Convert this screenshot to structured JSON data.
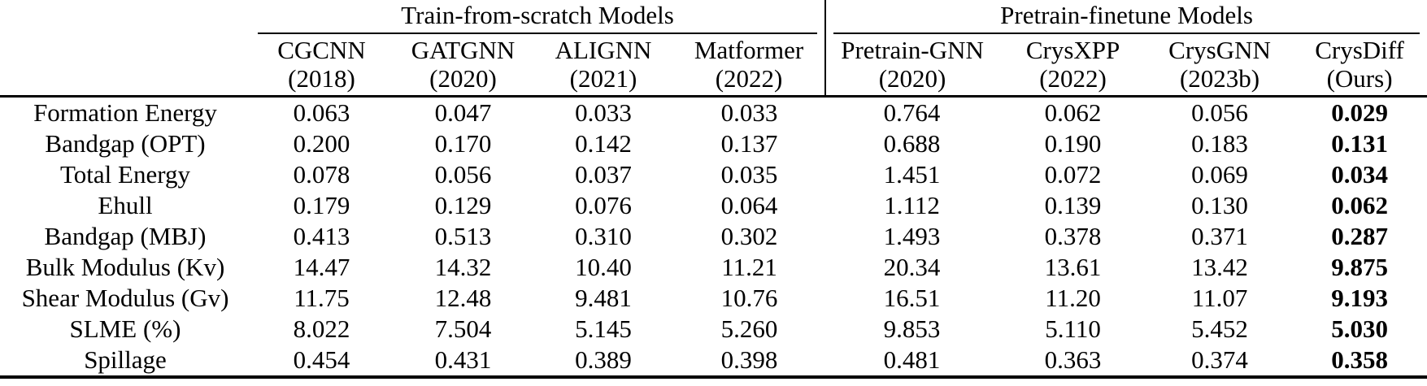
{
  "table": {
    "groups": [
      {
        "label": "Train-from-scratch Models"
      },
      {
        "label": "Pretrain-finetune Models"
      }
    ],
    "columns": [
      {
        "name": "CGCNN",
        "year": "(2018)"
      },
      {
        "name": "GATGNN",
        "year": "(2020)"
      },
      {
        "name": "ALIGNN",
        "year": "(2021)"
      },
      {
        "name": "Matformer",
        "year": "(2022)"
      },
      {
        "name": "Pretrain-GNN",
        "year": "(2020)"
      },
      {
        "name": "CrysXPP",
        "year": "(2022)"
      },
      {
        "name": "CrysGNN",
        "year": "(2023b)"
      },
      {
        "name": "CrysDiff",
        "year": "(Ours)"
      }
    ],
    "bold_column": 7,
    "rows": [
      {
        "label": "Formation Energy",
        "values": [
          "0.063",
          "0.047",
          "0.033",
          "0.033",
          "0.764",
          "0.062",
          "0.056",
          "0.029"
        ]
      },
      {
        "label": "Bandgap (OPT)",
        "values": [
          "0.200",
          "0.170",
          "0.142",
          "0.137",
          "0.688",
          "0.190",
          "0.183",
          "0.131"
        ]
      },
      {
        "label": "Total Energy",
        "values": [
          "0.078",
          "0.056",
          "0.037",
          "0.035",
          "1.451",
          "0.072",
          "0.069",
          "0.034"
        ]
      },
      {
        "label": "Ehull",
        "values": [
          "0.179",
          "0.129",
          "0.076",
          "0.064",
          "1.112",
          "0.139",
          "0.130",
          "0.062"
        ]
      },
      {
        "label": "Bandgap (MBJ)",
        "values": [
          "0.413",
          "0.513",
          "0.310",
          "0.302",
          "1.493",
          "0.378",
          "0.371",
          "0.287"
        ]
      },
      {
        "label": "Bulk Modulus (Kv)",
        "values": [
          "14.47",
          "14.32",
          "10.40",
          "11.21",
          "20.34",
          "13.61",
          "13.42",
          "9.875"
        ]
      },
      {
        "label": "Shear Modulus (Gv)",
        "values": [
          "11.75",
          "12.48",
          "9.481",
          "10.76",
          "16.51",
          "11.20",
          "11.07",
          "9.193"
        ]
      },
      {
        "label": "SLME (%)",
        "values": [
          "8.022",
          "7.504",
          "5.145",
          "5.260",
          "9.853",
          "5.110",
          "5.452",
          "5.030"
        ]
      },
      {
        "label": "Spillage",
        "values": [
          "0.454",
          "0.431",
          "0.389",
          "0.398",
          "0.481",
          "0.363",
          "0.374",
          "0.358"
        ]
      }
    ]
  }
}
